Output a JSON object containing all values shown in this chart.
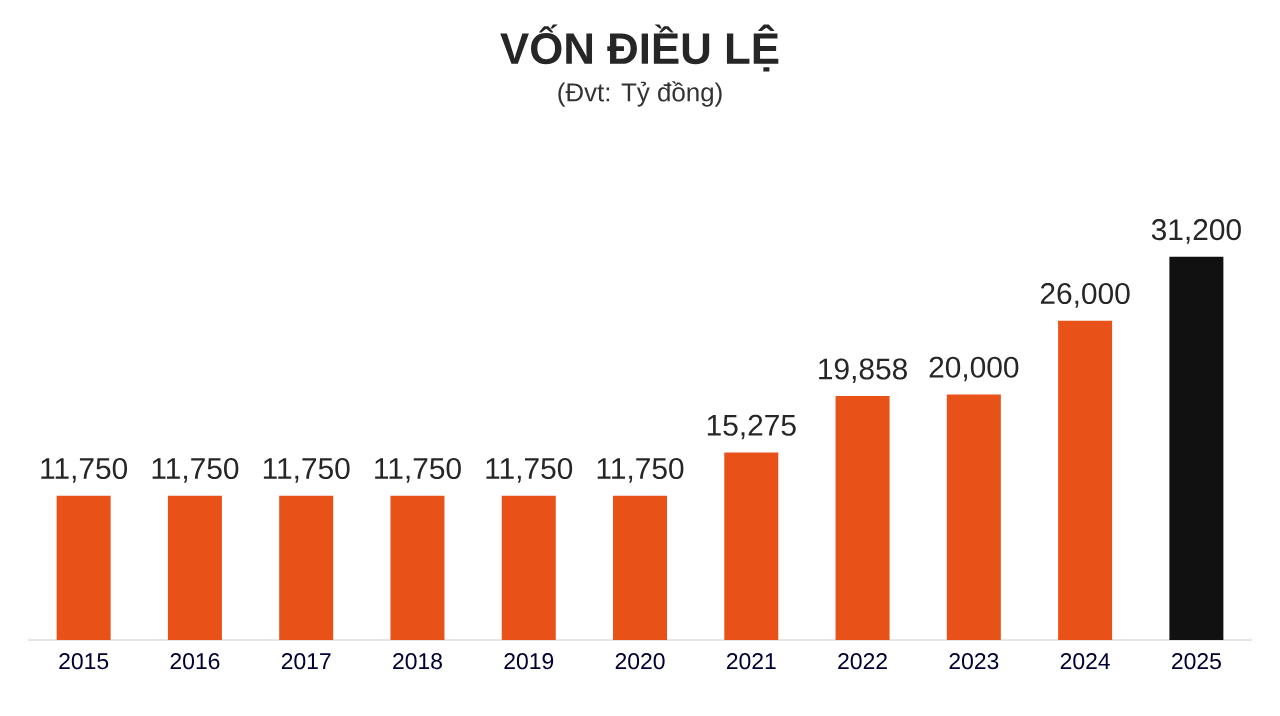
{
  "chart_data": {
    "type": "bar",
    "title": "VỐN ĐIỀU LỆ",
    "subtitle": "(Đvt: Tỷ đồng)",
    "categories": [
      "2015",
      "2016",
      "2017",
      "2018",
      "2019",
      "2020",
      "2021",
      "2022",
      "2023",
      "2024",
      "2025"
    ],
    "values": [
      11750,
      11750,
      11750,
      11750,
      11750,
      11750,
      15275,
      19858,
      20000,
      26000,
      31200
    ],
    "colors": [
      "#e85118",
      "#e85118",
      "#e85118",
      "#e85118",
      "#e85118",
      "#e85118",
      "#e85118",
      "#e85118",
      "#e85118",
      "#e85118",
      "#111111"
    ],
    "value_labels": [
      "11,750",
      "11,750",
      "11,750",
      "11,750",
      "11,750",
      "11,750",
      "15,275",
      "19,858",
      "20,000",
      "26,000",
      "31,200"
    ],
    "marker": "none"
  }
}
